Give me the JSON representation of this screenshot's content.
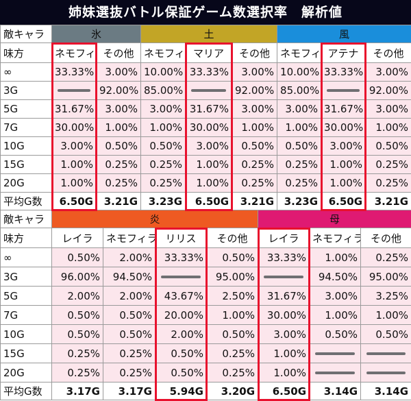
{
  "title": "姉妹選抜バトル保証ゲーム数選択率　解析値",
  "colors": {
    "ice": "#6b7b83",
    "earth": "#c2a526",
    "wind": "#1a8edb",
    "fire": "#ee5a22",
    "mother": "#df1a72",
    "cell": "#fce6ec",
    "highlight": "#e8112d"
  },
  "table1": {
    "enemy_label": "敵キャラ",
    "ally_label": "味方",
    "groups": [
      {
        "name": "氷",
        "color": "#6b7b83"
      },
      {
        "name": "土",
        "color": "#c2a526"
      },
      {
        "name": "風",
        "color": "#1a8edb"
      }
    ],
    "headers": [
      "ネモフィラ",
      "その他",
      "ネモフィラ",
      "マリア",
      "その他",
      "ネモフィラ",
      "アテナ",
      "その他"
    ],
    "rows": [
      {
        "label": "∞",
        "values": [
          "33.33%",
          "3.00%",
          "10.00%",
          "33.33%",
          "3.00%",
          "10.00%",
          "33.33%",
          "3.00%"
        ]
      },
      {
        "label": "3G",
        "values": [
          "-",
          "92.00%",
          "85.00%",
          "-",
          "92.00%",
          "85.00%",
          "-",
          "92.00%"
        ]
      },
      {
        "label": "5G",
        "values": [
          "31.67%",
          "3.00%",
          "3.00%",
          "31.67%",
          "3.00%",
          "3.00%",
          "31.67%",
          "3.00%"
        ]
      },
      {
        "label": "7G",
        "values": [
          "30.00%",
          "1.00%",
          "1.00%",
          "30.00%",
          "1.00%",
          "1.00%",
          "30.00%",
          "1.00%"
        ]
      },
      {
        "label": "10G",
        "values": [
          "3.00%",
          "0.50%",
          "0.50%",
          "3.00%",
          "0.50%",
          "0.50%",
          "3.00%",
          "0.50%"
        ]
      },
      {
        "label": "15G",
        "values": [
          "1.00%",
          "0.25%",
          "0.25%",
          "1.00%",
          "0.25%",
          "0.25%",
          "1.00%",
          "0.25%"
        ]
      },
      {
        "label": "20G",
        "values": [
          "1.00%",
          "0.25%",
          "0.25%",
          "1.00%",
          "0.25%",
          "0.25%",
          "1.00%",
          "0.25%"
        ]
      }
    ],
    "avg": {
      "label": "平均G数",
      "values": [
        "6.50G",
        "3.21G",
        "3.23G",
        "6.50G",
        "3.21G",
        "3.23G",
        "6.50G",
        "3.21G"
      ]
    }
  },
  "table2": {
    "enemy_label": "敵キャラ",
    "ally_label": "味方",
    "groups": [
      {
        "name": "炎",
        "color": "#ee5a22"
      },
      {
        "name": "母",
        "color": "#df1a72"
      }
    ],
    "headers": [
      "レイラ",
      "ネモフィラ",
      "リリス",
      "その他",
      "レイラ",
      "ネモフィラ",
      "その他"
    ],
    "rows": [
      {
        "label": "∞",
        "values": [
          "0.50%",
          "2.00%",
          "33.33%",
          "0.50%",
          "33.33%",
          "1.00%",
          "0.25%"
        ]
      },
      {
        "label": "3G",
        "values": [
          "96.00%",
          "94.50%",
          "-",
          "95.00%",
          "-",
          "94.50%",
          "95.00%"
        ]
      },
      {
        "label": "5G",
        "values": [
          "2.00%",
          "2.00%",
          "43.67%",
          "2.50%",
          "31.67%",
          "3.00%",
          "3.25%"
        ]
      },
      {
        "label": "7G",
        "values": [
          "0.50%",
          "0.50%",
          "20.00%",
          "1.00%",
          "30.00%",
          "1.00%",
          "1.00%"
        ]
      },
      {
        "label": "10G",
        "values": [
          "0.50%",
          "0.50%",
          "2.00%",
          "0.50%",
          "3.00%",
          "0.50%",
          "0.50%"
        ]
      },
      {
        "label": "15G",
        "values": [
          "0.25%",
          "0.25%",
          "0.50%",
          "0.25%",
          "1.00%",
          "-",
          "-"
        ]
      },
      {
        "label": "20G",
        "values": [
          "0.25%",
          "0.25%",
          "0.50%",
          "0.25%",
          "1.00%",
          "-",
          "-"
        ]
      }
    ],
    "avg": {
      "label": "平均G数",
      "values": [
        "3.17G",
        "3.17G",
        "5.94G",
        "3.20G",
        "6.50G",
        "3.14G",
        "3.14G"
      ]
    }
  }
}
